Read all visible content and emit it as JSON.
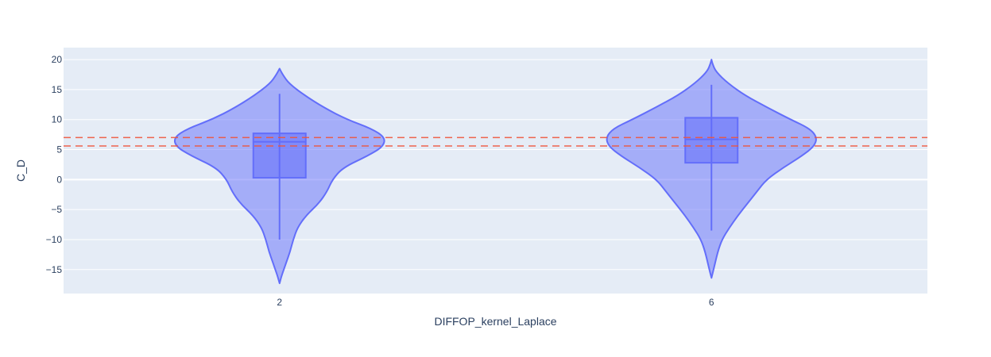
{
  "chart_data": {
    "type": "violin",
    "title": "",
    "xlabel": "DIFFOP_kernel_Laplace",
    "ylabel": "C_D",
    "categories": [
      "2",
      "6"
    ],
    "ylim": [
      -19,
      22
    ],
    "yticks": [
      -15,
      -10,
      -5,
      0,
      5,
      10,
      15,
      20
    ],
    "grid": true,
    "colors": {
      "plot_bg": "#e5ecf6",
      "grid": "#ffffff",
      "violin_fill": "#636efa",
      "violin_line": "#636efa",
      "reference_line": "#ef553b",
      "text": "#2a3f5f"
    },
    "reference_lines": [
      {
        "y": 7.0,
        "style": "dashed"
      },
      {
        "y": 5.6,
        "style": "dashed"
      }
    ],
    "series": [
      {
        "category": "2",
        "min": -10.0,
        "q1": 0.3,
        "median": 6.3,
        "q3": 7.7,
        "max": 14.3,
        "density_profile": [
          {
            "y": -17.3,
            "w": 0.0
          },
          {
            "y": -16.0,
            "w": 0.02
          },
          {
            "y": -14.0,
            "w": 0.06
          },
          {
            "y": -12.0,
            "w": 0.1
          },
          {
            "y": -10.0,
            "w": 0.13
          },
          {
            "y": -8.0,
            "w": 0.17
          },
          {
            "y": -6.0,
            "w": 0.25
          },
          {
            "y": -4.0,
            "w": 0.37
          },
          {
            "y": -2.0,
            "w": 0.45
          },
          {
            "y": 0.0,
            "w": 0.5
          },
          {
            "y": 2.0,
            "w": 0.6
          },
          {
            "y": 4.0,
            "w": 0.84
          },
          {
            "y": 5.5,
            "w": 0.98
          },
          {
            "y": 7.0,
            "w": 1.0
          },
          {
            "y": 8.5,
            "w": 0.87
          },
          {
            "y": 10.0,
            "w": 0.64
          },
          {
            "y": 12.0,
            "w": 0.42
          },
          {
            "y": 14.0,
            "w": 0.24
          },
          {
            "y": 16.0,
            "w": 0.09
          },
          {
            "y": 17.5,
            "w": 0.03
          },
          {
            "y": 18.5,
            "w": 0.0
          }
        ]
      },
      {
        "category": "6",
        "min": -8.5,
        "q1": 2.8,
        "median": 6.7,
        "q3": 10.3,
        "max": 15.8,
        "density_profile": [
          {
            "y": -16.4,
            "w": 0.0
          },
          {
            "y": -15.0,
            "w": 0.02
          },
          {
            "y": -12.0,
            "w": 0.06
          },
          {
            "y": -10.0,
            "w": 0.1
          },
          {
            "y": -8.0,
            "w": 0.17
          },
          {
            "y": -6.0,
            "w": 0.25
          },
          {
            "y": -4.0,
            "w": 0.34
          },
          {
            "y": -2.0,
            "w": 0.43
          },
          {
            "y": 0.0,
            "w": 0.52
          },
          {
            "y": 2.0,
            "w": 0.68
          },
          {
            "y": 4.0,
            "w": 0.86
          },
          {
            "y": 5.5,
            "w": 0.97
          },
          {
            "y": 7.0,
            "w": 1.0
          },
          {
            "y": 8.5,
            "w": 0.93
          },
          {
            "y": 10.0,
            "w": 0.75
          },
          {
            "y": 12.0,
            "w": 0.53
          },
          {
            "y": 14.0,
            "w": 0.32
          },
          {
            "y": 16.0,
            "w": 0.16
          },
          {
            "y": 18.0,
            "w": 0.04
          },
          {
            "y": 19.3,
            "w": 0.01
          },
          {
            "y": 20.0,
            "w": 0.0
          }
        ]
      }
    ]
  }
}
